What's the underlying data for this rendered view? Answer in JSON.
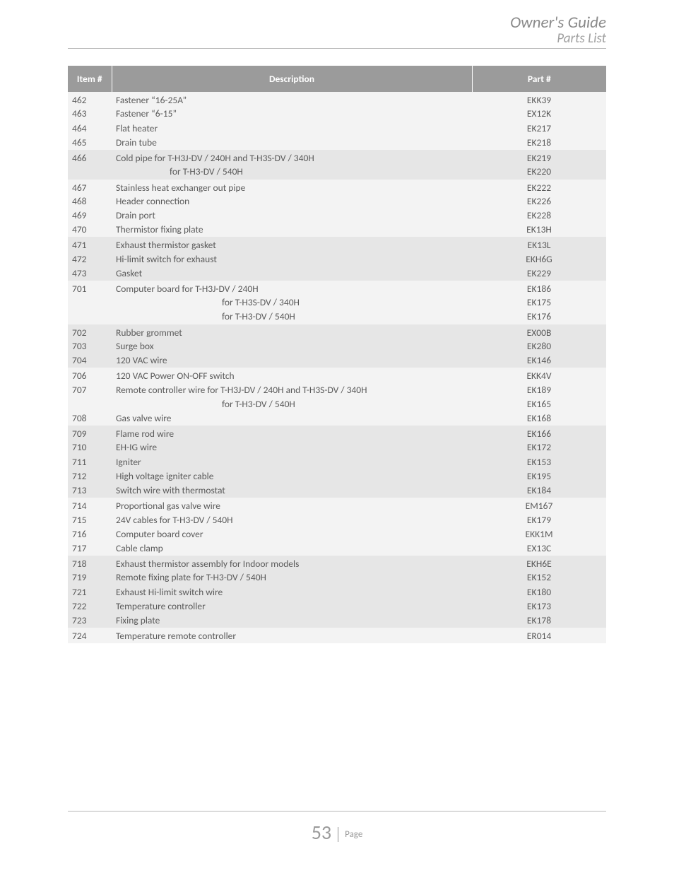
{
  "header": {
    "title": "Owner's Guide",
    "subtitle": "Parts List"
  },
  "columns": {
    "item": "Item #",
    "desc": "Description",
    "part": "Part #"
  },
  "groups": [
    {
      "bg": "a",
      "rows": [
        {
          "item": "462",
          "desc": "Fastener “16-25A”",
          "part": "EKK39"
        },
        {
          "item": "463",
          "desc": "Fastener “6-15”",
          "part": "EX12K"
        },
        {
          "item": "464",
          "desc": "Flat heater",
          "part": "EK217"
        },
        {
          "item": "465",
          "desc": "Drain tube",
          "part": "EK218"
        }
      ]
    },
    {
      "bg": "b",
      "rows": [
        {
          "item": "466",
          "desc": "Cold pipe for T-H3J-DV / 240H and T-H3S-DV / 340H",
          "part": "EK219"
        },
        {
          "item": "",
          "desc": "for T-H3-DV / 540H",
          "indent": 1,
          "part": "EK220"
        }
      ]
    },
    {
      "bg": "a",
      "rows": [
        {
          "item": "467",
          "desc": "Stainless heat exchanger out pipe",
          "part": "EK222"
        },
        {
          "item": "468",
          "desc": "Header connection",
          "part": "EK226"
        },
        {
          "item": "469",
          "desc": "Drain port",
          "part": "EK228"
        },
        {
          "item": "470",
          "desc": "Thermistor fixing plate",
          "part": "EK13H"
        }
      ]
    },
    {
      "bg": "b",
      "rows": [
        {
          "item": "471",
          "desc": "Exhaust thermistor gasket",
          "part": "EK13L"
        },
        {
          "item": "472",
          "desc": "Hi-limit switch for exhaust",
          "part": "EKH6G"
        },
        {
          "item": "473",
          "desc": "Gasket",
          "part": "EK229"
        }
      ]
    },
    {
      "bg": "a",
      "rows": [
        {
          "item": "701",
          "desc": "Computer board for T-H3J-DV / 240H",
          "part": "EK186"
        },
        {
          "item": "",
          "desc": "for T-H3S-DV / 340H",
          "indent": 2,
          "part": "EK175"
        },
        {
          "item": "",
          "desc": "for T-H3-DV / 540H",
          "indent": 2,
          "part": "EK176"
        }
      ]
    },
    {
      "bg": "b",
      "rows": [
        {
          "item": "702",
          "desc": "Rubber grommet",
          "part": "EX00B"
        },
        {
          "item": "703",
          "desc": "Surge box",
          "part": "EK280"
        },
        {
          "item": "704",
          "desc": "120 VAC wire",
          "part": "EK146"
        }
      ]
    },
    {
      "bg": "a",
      "rows": [
        {
          "item": "706",
          "desc": "120 VAC Power ON-OFF switch",
          "part": "EKK4V"
        },
        {
          "item": "707",
          "desc": "Remote controller wire for T-H3J-DV / 240H and T-H3S-DV / 340H",
          "part": "EK189"
        },
        {
          "item": "",
          "desc": "for T-H3-DV / 540H",
          "indent": 2,
          "part": "EK165"
        },
        {
          "item": "708",
          "desc": "Gas valve wire",
          "part": "EK168"
        }
      ]
    },
    {
      "bg": "b",
      "rows": [
        {
          "item": "709",
          "desc": "Flame rod wire",
          "part": "EK166"
        },
        {
          "item": "710",
          "desc": "EH-IG wire",
          "part": "EK172"
        },
        {
          "item": "711",
          "desc": "Igniter",
          "part": "EK153"
        },
        {
          "item": "712",
          "desc": "High voltage igniter cable",
          "part": "EK195"
        },
        {
          "item": "713",
          "desc": "Switch wire with thermostat",
          "part": "EK184"
        }
      ]
    },
    {
      "bg": "a",
      "rows": [
        {
          "item": "714",
          "desc": "Proportional gas valve wire",
          "part": "EM167"
        },
        {
          "item": "715",
          "desc": "24V cables for T-H3-DV / 540H",
          "part": "EK179"
        },
        {
          "item": "716",
          "desc": "Computer board cover",
          "part": "EKK1M"
        },
        {
          "item": "717",
          "desc": "Cable clamp",
          "part": "EX13C"
        }
      ]
    },
    {
      "bg": "b",
      "rows": [
        {
          "item": "718",
          "desc": "Exhaust thermistor assembly for Indoor models",
          "part": "EKH6E"
        },
        {
          "item": "719",
          "desc": "Remote fixing plate for T-H3-DV / 540H",
          "part": "EK152"
        },
        {
          "item": "721",
          "desc": "Exhaust Hi-limit switch wire",
          "part": "EK180"
        },
        {
          "item": "722",
          "desc": "Temperature controller",
          "part": "EK173"
        },
        {
          "item": "723",
          "desc": "Fixing plate",
          "part": "EK178"
        }
      ]
    },
    {
      "bg": "a",
      "rows": [
        {
          "item": "724",
          "desc": "Temperature remote controller",
          "part": "ER014"
        }
      ]
    }
  ],
  "footer": {
    "page_number": "53",
    "page_label": "Page"
  }
}
